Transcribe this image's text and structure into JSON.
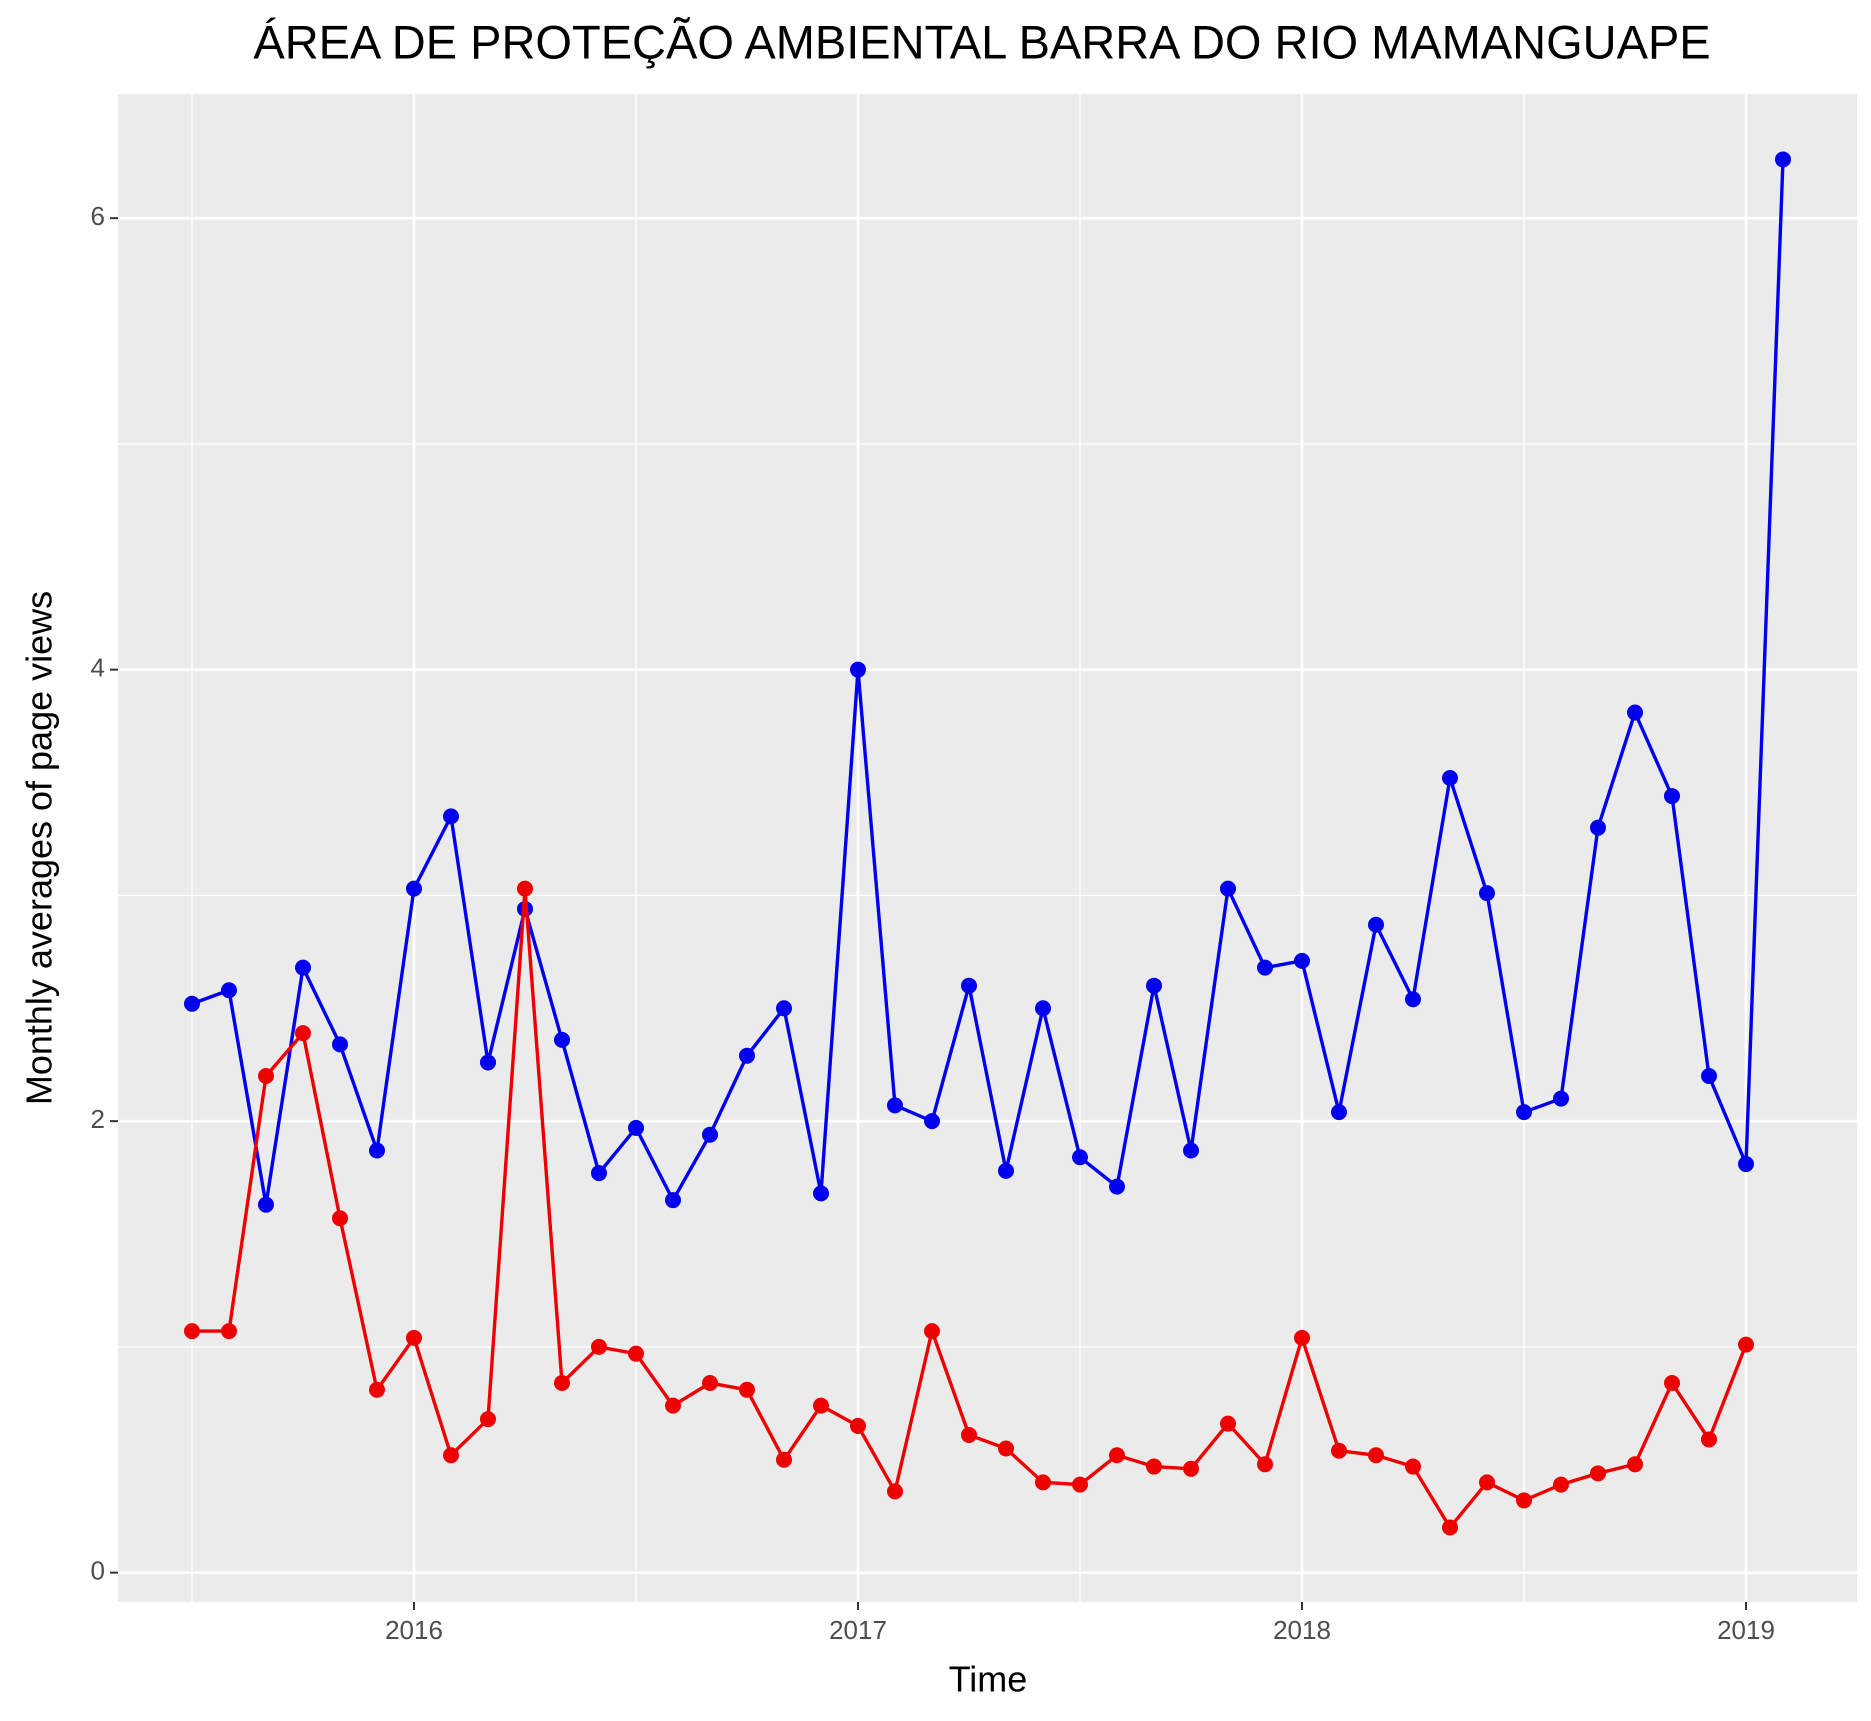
{
  "chart_data": {
    "type": "line",
    "title": "ÁREA DE PROTEÇÃO AMBIENTAL BARRA DO RIO MAMANGUAPE",
    "x_label": "Time",
    "y_label": "Monthly averages of page views",
    "x": [
      "2015-07",
      "2015-08",
      "2015-09",
      "2015-10",
      "2015-11",
      "2015-12",
      "2016-01",
      "2016-02",
      "2016-03",
      "2016-04",
      "2016-05",
      "2016-06",
      "2016-07",
      "2016-08",
      "2016-09",
      "2016-10",
      "2016-11",
      "2016-12",
      "2017-01",
      "2017-02",
      "2017-03",
      "2017-04",
      "2017-05",
      "2017-06",
      "2017-07",
      "2017-08",
      "2017-09",
      "2017-10",
      "2017-11",
      "2017-12",
      "2018-01",
      "2018-02",
      "2018-03",
      "2018-04",
      "2018-05",
      "2018-06",
      "2018-07",
      "2018-08",
      "2018-09",
      "2018-10",
      "2018-11",
      "2018-12",
      "2019-01",
      "2019-02"
    ],
    "series": [
      {
        "color": "#0000ee",
        "values": [
          2.52,
          2.58,
          1.63,
          2.68,
          2.34,
          1.87,
          3.03,
          3.35,
          2.26,
          2.94,
          2.36,
          1.77,
          1.97,
          1.65,
          1.94,
          2.29,
          2.5,
          1.68,
          4.0,
          2.07,
          2.0,
          2.6,
          1.78,
          2.5,
          1.84,
          1.71,
          2.6,
          1.87,
          3.03,
          2.68,
          2.71,
          2.04,
          2.87,
          2.54,
          3.52,
          3.01,
          2.04,
          2.1,
          3.3,
          3.81,
          3.44,
          2.2,
          1.81,
          6.26
        ]
      },
      {
        "color": "#ee0000",
        "values": [
          1.07,
          1.07,
          2.2,
          2.39,
          1.57,
          0.81,
          1.04,
          0.52,
          0.68,
          3.03,
          0.84,
          1.0,
          0.97,
          0.74,
          0.84,
          0.81,
          0.5,
          0.74,
          0.65,
          0.36,
          1.07,
          0.61,
          0.55,
          0.4,
          0.39,
          0.52,
          0.47,
          0.46,
          0.66,
          0.48,
          1.04,
          0.54,
          0.52,
          0.47,
          0.2,
          0.4,
          0.32,
          0.39,
          0.44,
          0.48,
          0.84,
          0.59,
          1.01,
          null
        ]
      }
    ],
    "xlim": [
      "2015-05",
      "2019-04"
    ],
    "xticks": [
      {
        "value": "2016-01",
        "label": "2016"
      },
      {
        "value": "2017-01",
        "label": "2017"
      },
      {
        "value": "2018-01",
        "label": "2018"
      },
      {
        "value": "2019-01",
        "label": "2019"
      }
    ],
    "ylim": [
      -0.13,
      6.55
    ],
    "yticks": [
      0,
      2,
      4,
      6
    ],
    "grid": true
  }
}
